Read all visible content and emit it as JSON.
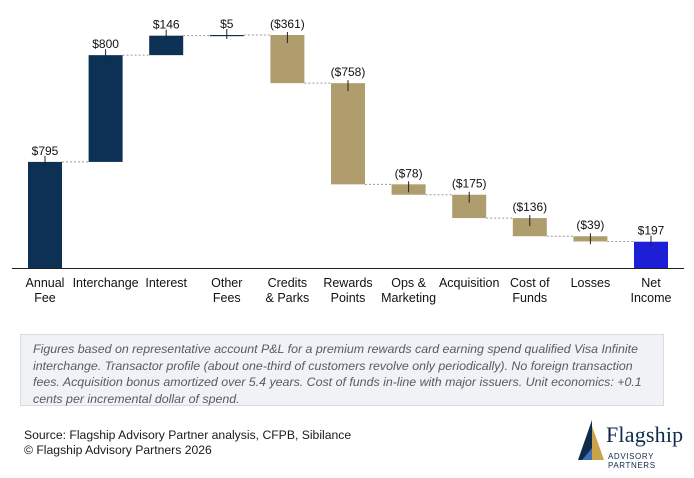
{
  "chart_data": {
    "type": "waterfall",
    "categories": [
      "Annual\nFee",
      "Interchange",
      "Interest",
      "Other\nFees",
      "Credits\n& Parks",
      "Rewards\nPoints",
      "Ops &\nMarketing",
      "Acquisition",
      "Cost of\nFunds",
      "Losses",
      "Net\nIncome"
    ],
    "values": [
      795,
      800,
      146,
      5,
      -361,
      -758,
      -78,
      -175,
      -136,
      -39,
      197
    ],
    "value_labels": [
      "$795",
      "$800",
      "$146",
      "$5",
      "($361)",
      "($758)",
      "($78)",
      "($175)",
      "($136)",
      "($39)",
      "$197"
    ],
    "kinds": [
      "increase",
      "increase",
      "increase",
      "increase",
      "decrease",
      "decrease",
      "decrease",
      "decrease",
      "decrease",
      "decrease",
      "total"
    ],
    "colors": {
      "increase": "#0c3154",
      "decrease": "#b09d6e",
      "total": "#1c1fd6"
    },
    "ylim": [
      0,
      1746
    ]
  },
  "note": "Figures based on representative account P&L for a premium rewards card earning spend qualified Visa Infinite interchange. Transactor profile (about one-third of customers revolve only periodically). No foreign transaction fees. Acquisition bonus amortized over 5.4 years. Cost of funds in-line with major issuers. Unit economics: +0.1 cents per incremental dollar of spend.",
  "source_line": "Source: Flagship Advisory Partner analysis, CFPB, Sibilance",
  "copyright_line": "© Flagship Advisory Partners 2026",
  "logo": {
    "name": "Flagship",
    "tagline": "ADVISORY PARTNERS",
    "colors": {
      "navy": "#0f2a4a",
      "gold": "#c9a24a",
      "blue": "#3f6fb5"
    }
  }
}
